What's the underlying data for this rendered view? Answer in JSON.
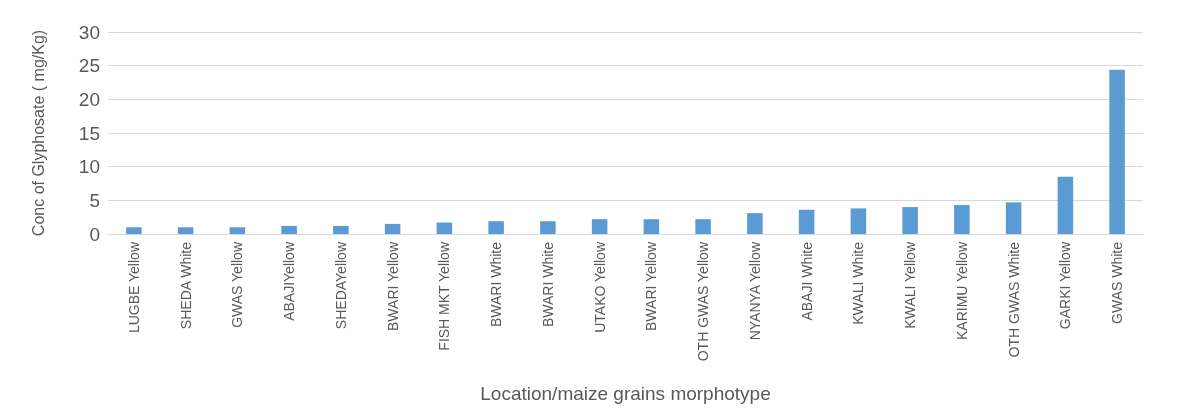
{
  "chart_data": {
    "type": "bar",
    "xlabel": "Location/maize grains morphotype",
    "ylabel": "Conc of Glyphosate ( mg/Kg)",
    "categories": [
      "LUGBE Yellow",
      "SHEDA White",
      "GWAS Yellow",
      "ABAJIYellow",
      "SHEDAYellow",
      "BWARI Yellow",
      "FISH MKT Yellow",
      "BWARI White",
      "BWARI White",
      "UTAKO Yellow",
      "BWARI Yellow",
      "OTH GWAS Yellow",
      "NYANYA Yellow",
      "ABAJI White",
      "KWALI White",
      "KWALI Yellow",
      "KARIMU Yellow",
      "OTH GWAS White",
      "GARKI Yellow",
      "GWAS White"
    ],
    "values": [
      1.0,
      1.0,
      1.0,
      1.2,
      1.2,
      1.5,
      1.7,
      1.9,
      1.9,
      2.2,
      2.2,
      2.2,
      3.1,
      3.6,
      3.8,
      4.0,
      4.3,
      4.7,
      8.5,
      24.4
    ],
    "color": "#5b9bd5",
    "ylim": [
      0,
      30
    ],
    "yticks": [
      0,
      5,
      10,
      15,
      20,
      25,
      30
    ],
    "grid": "y"
  }
}
